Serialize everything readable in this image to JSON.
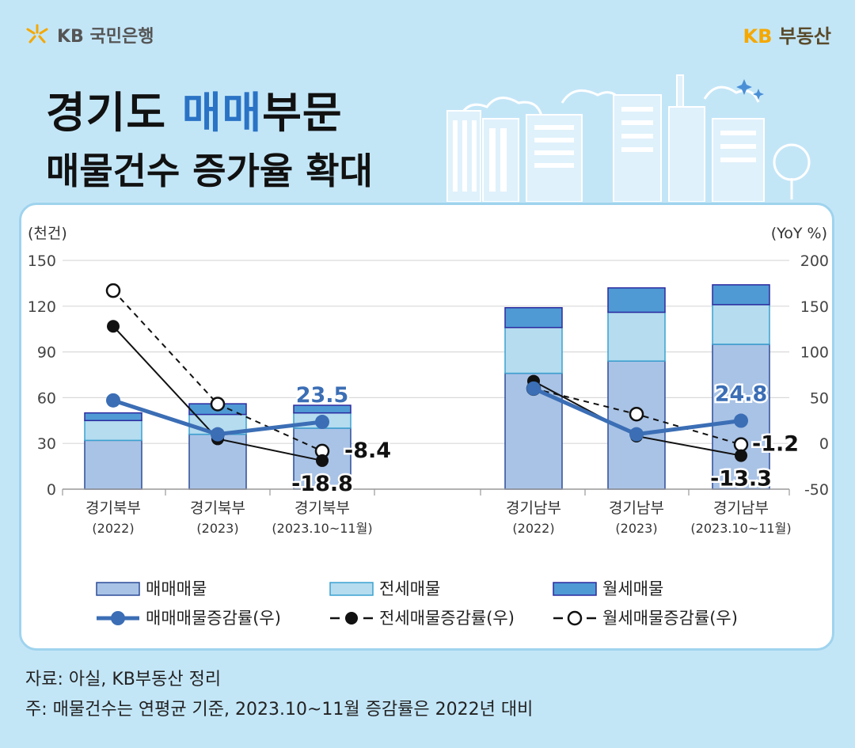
{
  "header": {
    "bank_logo_text": "KB 국민은행",
    "brand_kb": "KB",
    "brand_name": "부동산"
  },
  "title": {
    "line1_part1": "경기도 ",
    "line1_highlight": "매매",
    "line1_part2": "부문",
    "line2": "매물건수 증가율 확대"
  },
  "chart_data": {
    "type": "bar",
    "left_axis_unit": "(천건)",
    "right_axis_unit": "(YoY %)",
    "left_ylim": [
      0,
      150
    ],
    "left_ticks": [
      "150",
      "120",
      "90",
      "60",
      "30",
      "0"
    ],
    "right_ylim": [
      -50,
      200
    ],
    "right_ticks": [
      "200",
      "150",
      "100",
      "50",
      "0",
      "-50"
    ],
    "categories": [
      {
        "name": "경기북부",
        "period": "(2022)"
      },
      {
        "name": "경기북부",
        "period": "(2023)"
      },
      {
        "name": "경기북부",
        "period": "(2023.10~11월)"
      },
      {
        "name": "경기남부",
        "period": "(2022)"
      },
      {
        "name": "경기남부",
        "period": "(2023)"
      },
      {
        "name": "경기남부",
        "period": "(2023.10~11월)"
      }
    ],
    "bar_series": [
      {
        "name": "매매매물",
        "values": [
          32,
          36,
          40,
          76,
          84,
          95
        ],
        "color": "#a9c3e6",
        "border": "#2e4d99"
      },
      {
        "name": "전세매물",
        "values": [
          13,
          13,
          10,
          30,
          32,
          26
        ],
        "color": "#b5dcef",
        "border": "#3ba2d0"
      },
      {
        "name": "월세매물",
        "values": [
          5,
          7,
          5,
          13,
          16,
          13
        ],
        "color": "#4f9ad4",
        "border": "#2c2aa0"
      }
    ],
    "line_series": [
      {
        "name": "매매매물증감률(우)",
        "values": [
          47,
          10,
          23.5,
          60,
          10,
          24.8
        ],
        "style": "solid-thick",
        "color": "#3b6eb5"
      },
      {
        "name": "전세매물증감률(우)",
        "values": [
          128,
          5,
          -18.8,
          68,
          8,
          -13.3
        ],
        "style": "solid",
        "color": "#111111"
      },
      {
        "name": "월세매물증감률(우)",
        "values": [
          167,
          43,
          -8.4,
          60,
          32,
          -1.2
        ],
        "style": "dashed",
        "color": "#111111"
      }
    ],
    "data_labels": [
      {
        "text": "23.5",
        "series": 0,
        "index": 2
      },
      {
        "text": "-8.4",
        "series": 2,
        "index": 2
      },
      {
        "text": "-18.8",
        "series": 1,
        "index": 2
      },
      {
        "text": "24.8",
        "series": 0,
        "index": 5
      },
      {
        "text": "-1.2",
        "series": 2,
        "index": 5
      },
      {
        "text": "-13.3",
        "series": 1,
        "index": 5
      }
    ],
    "grid": true
  },
  "footer": {
    "source": "자료: 아실, KB부동산 정리",
    "note": "주: 매물건수는 연평균 기준, 2023.10~11월 증감률은 2022년 대비"
  }
}
